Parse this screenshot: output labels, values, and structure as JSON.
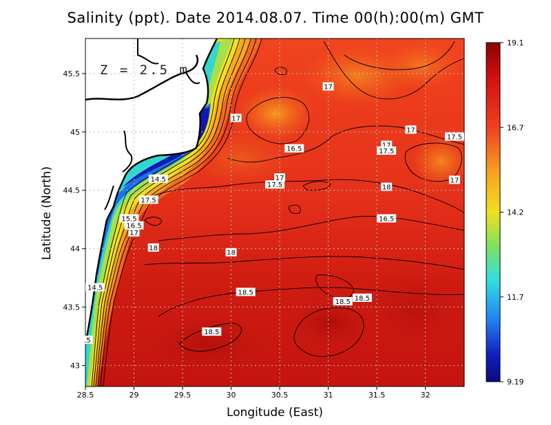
{
  "title": "Salinity (ppt). Date 2014.08.07. Time 00(h):00(m) GMT",
  "depth_label": "Z = 2.5 m",
  "x_axis": {
    "label": "Longitude (East)",
    "ticks": [
      "28.5",
      "29",
      "29.5",
      "30",
      "30.5",
      "31",
      "31.5",
      "32"
    ]
  },
  "y_axis": {
    "label": "Latitude (North)",
    "ticks": [
      "43",
      "43.5",
      "44",
      "44.5",
      "45",
      "45.5"
    ]
  },
  "colorbar": {
    "ticks": [
      "19.1",
      "16.7",
      "14.2",
      "11.7",
      "9.19"
    ],
    "min": 9.19,
    "max": 19.1
  },
  "contour_labels": [
    {
      "text": "17",
      "lon": 31.0,
      "lat": 45.39
    },
    {
      "text": "17",
      "lon": 30.05,
      "lat": 45.12
    },
    {
      "text": "17",
      "lon": 31.85,
      "lat": 45.02
    },
    {
      "text": "16.5",
      "lon": 30.65,
      "lat": 44.86
    },
    {
      "text": "17",
      "lon": 31.6,
      "lat": 44.89
    },
    {
      "text": "17.5",
      "lon": 31.6,
      "lat": 44.84
    },
    {
      "text": "17.5",
      "lon": 32.3,
      "lat": 44.96
    },
    {
      "text": "17",
      "lon": 30.5,
      "lat": 44.61
    },
    {
      "text": "17.5",
      "lon": 30.45,
      "lat": 44.55
    },
    {
      "text": "18",
      "lon": 31.6,
      "lat": 44.53
    },
    {
      "text": "17",
      "lon": 32.3,
      "lat": 44.59
    },
    {
      "text": "14.5",
      "lon": 29.25,
      "lat": 44.6
    },
    {
      "text": "17.5",
      "lon": 29.15,
      "lat": 44.42
    },
    {
      "text": "15.5",
      "lon": 28.95,
      "lat": 44.26
    },
    {
      "text": "16.5",
      "lon": 29.0,
      "lat": 44.2
    },
    {
      "text": "17",
      "lon": 29.0,
      "lat": 44.14
    },
    {
      "text": "18",
      "lon": 29.2,
      "lat": 44.01
    },
    {
      "text": "18",
      "lon": 30.0,
      "lat": 43.97
    },
    {
      "text": "16.5",
      "lon": 31.6,
      "lat": 44.26
    },
    {
      "text": "18.5",
      "lon": 30.15,
      "lat": 43.63
    },
    {
      "text": "18.5",
      "lon": 31.15,
      "lat": 43.55
    },
    {
      "text": "18.5",
      "lon": 31.35,
      "lat": 43.58
    },
    {
      "text": "14.5",
      "lon": 28.6,
      "lat": 43.67
    },
    {
      "text": "18.5",
      "lon": 29.8,
      "lat": 43.29
    },
    {
      "text": ".5",
      "lon": 28.52,
      "lat": 43.22
    }
  ],
  "colors": {
    "sea_high": "#c8160f",
    "sea_mid": "#f03a1e",
    "land": "#ffffff",
    "coast": "#000000"
  }
}
